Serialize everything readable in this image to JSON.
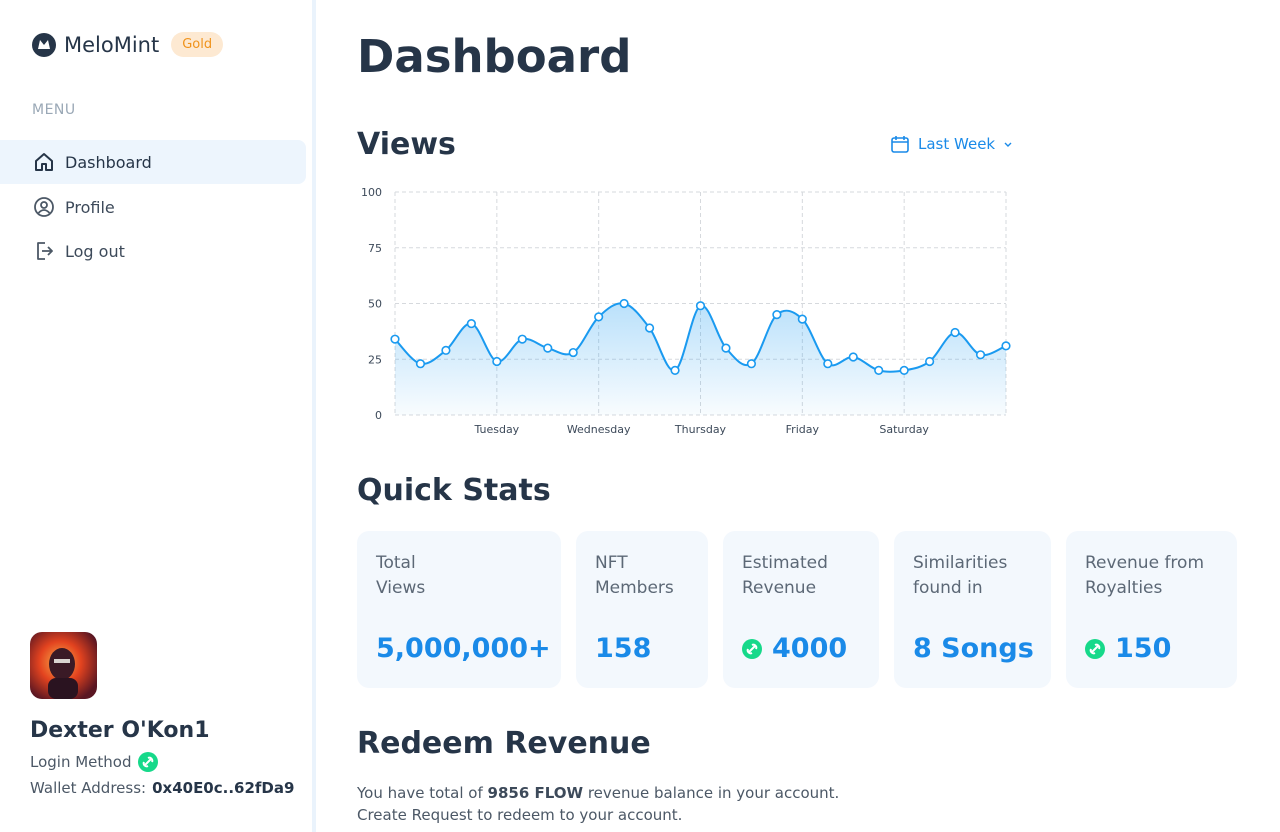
{
  "sidebar": {
    "brand": "MeloMint",
    "badge": "Gold",
    "menu_label": "MENU",
    "nav": [
      "Dashboard",
      "Profile",
      "Log out"
    ],
    "user": {
      "name": "Dexter O'Kon1",
      "login_method": "Login Method",
      "wallet_label": "Wallet Address:",
      "wallet": "0x40E0c..62fDa9"
    }
  },
  "header": {
    "title": "Dashboard"
  },
  "views": {
    "title": "Views",
    "filter": "Last Week",
    "chart_data": {
      "type": "line",
      "color": "#1a9af0",
      "grid": true,
      "categories": [
        null,
        null,
        null,
        null,
        "Tuesday",
        null,
        null,
        null,
        "Wednesday",
        null,
        null,
        null,
        "Thursday",
        null,
        null,
        null,
        "Friday",
        null,
        null,
        null,
        "Saturday",
        null,
        null,
        null,
        null
      ],
      "values": [
        34,
        23,
        29,
        41,
        24,
        34,
        30,
        28,
        44,
        50,
        39,
        20,
        49,
        30,
        23,
        45,
        43,
        23,
        26,
        20,
        20,
        24,
        37,
        27,
        31
      ],
      "ylim": [
        0,
        100
      ],
      "yticks": [
        0,
        25,
        50,
        75,
        100
      ]
    }
  },
  "quick_stats": {
    "title": "Quick Stats",
    "cards": [
      {
        "label": [
          "Total",
          "Views"
        ],
        "value": "5,000,000+"
      },
      {
        "label": [
          "NFT",
          "Members"
        ],
        "value": "158"
      },
      {
        "label": [
          "Estimated",
          "Revenue"
        ],
        "value": "4000"
      },
      {
        "label": [
          "Similarities",
          "found in"
        ],
        "value": "8 Songs"
      },
      {
        "label": [
          "Revenue from",
          "Royalties"
        ],
        "value": "150"
      }
    ]
  },
  "redeem": {
    "title": "Redeem Revenue",
    "line1_pre": "You have total of",
    "line1_bold": "9856 FLOW",
    "line1_post": "revenue balance in your account.",
    "line2": "Create Request to redeem to your account."
  }
}
